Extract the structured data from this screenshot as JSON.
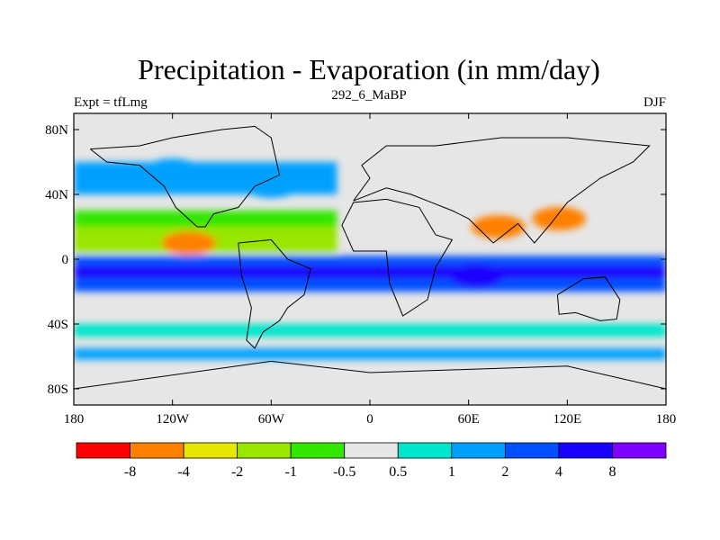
{
  "chart_data": {
    "type": "heatmap",
    "title": "Precipitation - Evaporation (in mm/day)",
    "left_string": "Expt = tfLmg",
    "center_string": "292_6_MaBP",
    "right_string": "DJF",
    "xlim": [
      -180,
      180
    ],
    "ylim": [
      -90,
      90
    ],
    "x_ticks": [
      {
        "value": -180,
        "label": "180"
      },
      {
        "value": -120,
        "label": "120W"
      },
      {
        "value": -60,
        "label": "60W"
      },
      {
        "value": 0,
        "label": "0"
      },
      {
        "value": 60,
        "label": "60E"
      },
      {
        "value": 120,
        "label": "120E"
      },
      {
        "value": 180,
        "label": "180"
      }
    ],
    "y_ticks": [
      {
        "value": 80,
        "label": "80N"
      },
      {
        "value": 40,
        "label": "40N"
      },
      {
        "value": 0,
        "label": "0"
      },
      {
        "value": -40,
        "label": "40S"
      },
      {
        "value": -80,
        "label": "80S"
      }
    ],
    "background_color": "#e6e6e6",
    "levels": [
      "-8",
      "-4",
      "-2",
      "-1",
      "-0.5",
      "0.5",
      "1",
      "2",
      "4",
      "8"
    ],
    "colors": [
      "#ff0000",
      "#ff8000",
      "#e6e600",
      "#99e600",
      "#33e600",
      "#e6e6e6",
      "#00e6cc",
      "#00a0ff",
      "#0050ff",
      "#1a00ff",
      "#8000ff"
    ],
    "field_bands": [
      {
        "lat": [
          -12,
          -4
        ],
        "lon": [
          -180,
          180
        ],
        "level": 4
      },
      {
        "lat": [
          -20,
          -12
        ],
        "lon": [
          -180,
          180
        ],
        "level": 3
      },
      {
        "lat": [
          -4,
          2
        ],
        "lon": [
          -180,
          180
        ],
        "level": 3
      },
      {
        "lat": [
          4,
          20
        ],
        "lon": [
          -180,
          -20
        ],
        "level": -2
      },
      {
        "lat": [
          20,
          30
        ],
        "lon": [
          -180,
          -20
        ],
        "level": -1
      },
      {
        "lat": [
          40,
          60
        ],
        "lon": [
          -180,
          -20
        ],
        "level": 2
      },
      {
        "lat": [
          -48,
          -40
        ],
        "lon": [
          -180,
          180
        ],
        "level": 1
      },
      {
        "lat": [
          -62,
          -55
        ],
        "lon": [
          -180,
          180
        ],
        "level": 2
      }
    ],
    "field_blobs": [
      {
        "lon": 65,
        "lat": -10,
        "level": 4
      },
      {
        "lon": 78,
        "lat": 20,
        "level": -4
      },
      {
        "lon": 115,
        "lat": 25,
        "level": -4
      },
      {
        "lon": -110,
        "lat": 10,
        "level": -4
      },
      {
        "lon": -60,
        "lat": 45,
        "level": 2
      },
      {
        "lon": -120,
        "lat": 55,
        "level": 2
      }
    ]
  }
}
